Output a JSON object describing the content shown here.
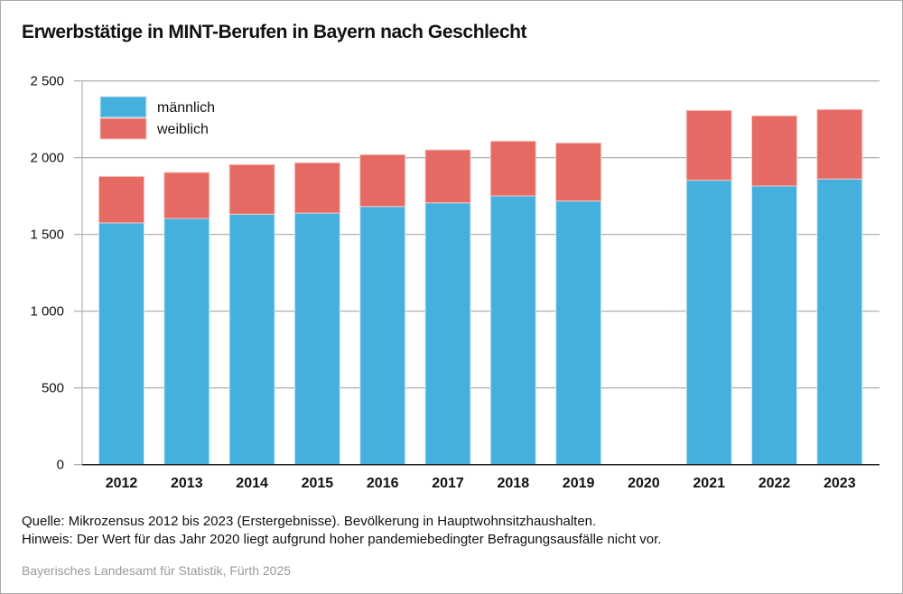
{
  "chart_data": {
    "type": "bar",
    "stacked": true,
    "title": "Erwerbstätige in MINT-Berufen in Bayern nach Geschlecht",
    "xlabel": "",
    "ylabel": "",
    "ylim": [
      0,
      2500
    ],
    "yticks": [
      0,
      500,
      1000,
      1500,
      2000,
      2500
    ],
    "ytick_labels": [
      "0",
      "500",
      "1 000",
      "1 500",
      "2 000",
      "2 500"
    ],
    "grid": true,
    "legend_position": "top-left",
    "categories": [
      "2012",
      "2013",
      "2014",
      "2015",
      "2016",
      "2017",
      "2018",
      "2019",
      "2020",
      "2021",
      "2022",
      "2023"
    ],
    "series": [
      {
        "name": "männlich",
        "color": "#45b0de",
        "values": [
          1575,
          1604,
          1632,
          1639,
          1682,
          1706,
          1751,
          1718,
          null,
          1853,
          1816,
          1861
        ]
      },
      {
        "name": "weiblich",
        "color": "#e46a63",
        "values": [
          303,
          300,
          323,
          328,
          338,
          345,
          357,
          378,
          null,
          455,
          457,
          453
        ]
      }
    ]
  },
  "footer": {
    "source": "Quelle: Mikrozensus 2012 bis 2023 (Erstergebnisse). Bevölkerung in Hauptwohnsitzhaushalten.",
    "note": "Hinweis: Der Wert für das Jahr 2020 liegt aufgrund hoher pandemiebedingter Befragungsausfälle nicht vor.",
    "credit": "Bayerisches Landesamt für Statistik, Fürth 2025"
  }
}
